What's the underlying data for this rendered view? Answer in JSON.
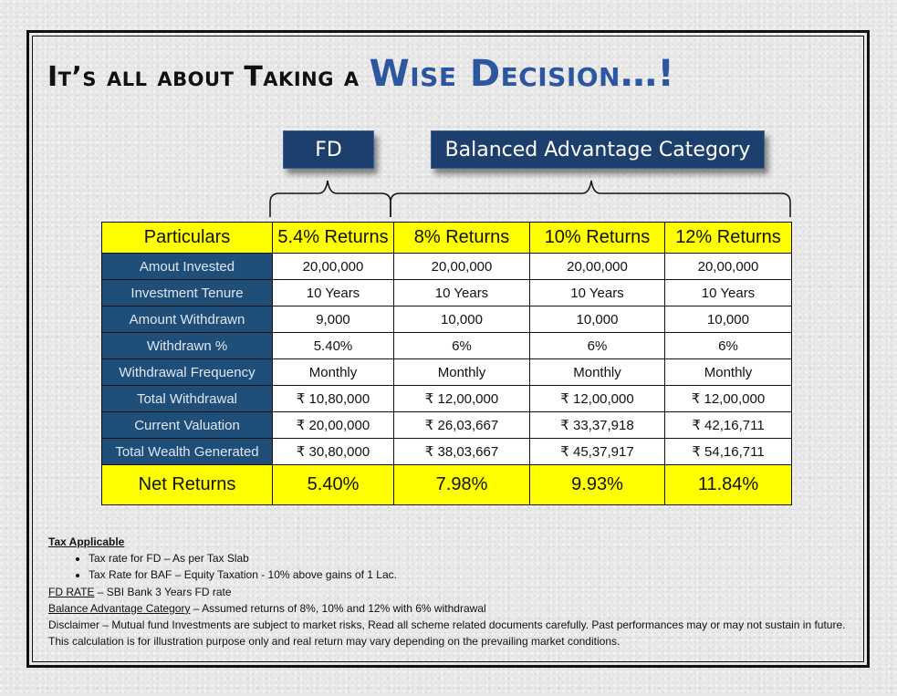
{
  "headline": {
    "part1": "It’s all about Taking a ",
    "part2": "Wise Decision…!"
  },
  "groups": {
    "fd": "FD",
    "baf": "Balanced Advantage Category"
  },
  "colors": {
    "header_yellow": "#ffff00",
    "label_blue": "#1f4e79",
    "headline_blue": "#2c56a0"
  },
  "table": {
    "headers": [
      "Particulars",
      "5.4% Returns",
      "8% Returns",
      "10% Returns",
      "12% Returns"
    ],
    "rows": [
      {
        "label": "Amout Invested",
        "values": [
          "20,00,000",
          "20,00,000",
          "20,00,000",
          "20,00,000"
        ]
      },
      {
        "label": "Investment Tenure",
        "values": [
          "10 Years",
          "10 Years",
          "10 Years",
          "10 Years"
        ]
      },
      {
        "label": "Amount Withdrawn",
        "values": [
          "9,000",
          "10,000",
          "10,000",
          "10,000"
        ]
      },
      {
        "label": "Withdrawn %",
        "values": [
          "5.40%",
          "6%",
          "6%",
          "6%"
        ]
      },
      {
        "label": "Withdrawal Frequency",
        "values": [
          "Monthly",
          "Monthly",
          "Monthly",
          "Monthly"
        ]
      },
      {
        "label": "Total Withdrawal",
        "values": [
          "₹ 10,80,000",
          "₹ 12,00,000",
          "₹ 12,00,000",
          "₹ 12,00,000"
        ]
      },
      {
        "label": "Current Valuation",
        "values": [
          "₹ 20,00,000",
          "₹ 26,03,667",
          "₹ 33,37,918",
          "₹ 42,16,711"
        ]
      },
      {
        "label": "Total Wealth Generated",
        "values": [
          "₹ 30,80,000",
          "₹ 38,03,667",
          "₹ 45,37,917",
          "₹ 54,16,711"
        ]
      }
    ],
    "net": {
      "label": "Net Returns",
      "values": [
        "5.40%",
        "7.98%",
        "9.93%",
        "11.84%"
      ]
    }
  },
  "notes": {
    "tax_heading": "Tax Applicable",
    "bullet1": "Tax rate for FD – As per Tax Slab",
    "bullet2": "Tax Rate for BAF – Equity Taxation - 10% above gains of 1 Lac.",
    "fd_rate_label": "FD RATE",
    "fd_rate_text": " – SBI Bank 3 Years FD rate",
    "bac_label": "Balance Advantage Category",
    "bac_text": " – Assumed returns of 8%, 10% and 12% with 6% withdrawal",
    "disclaimer": "Disclaimer – Mutual fund Investments are subject to market risks, Read all scheme related documents carefully. Past performances may or may not sustain in future. This calculation is for illustration purpose only and real return may vary depending on the prevailing market conditions."
  }
}
